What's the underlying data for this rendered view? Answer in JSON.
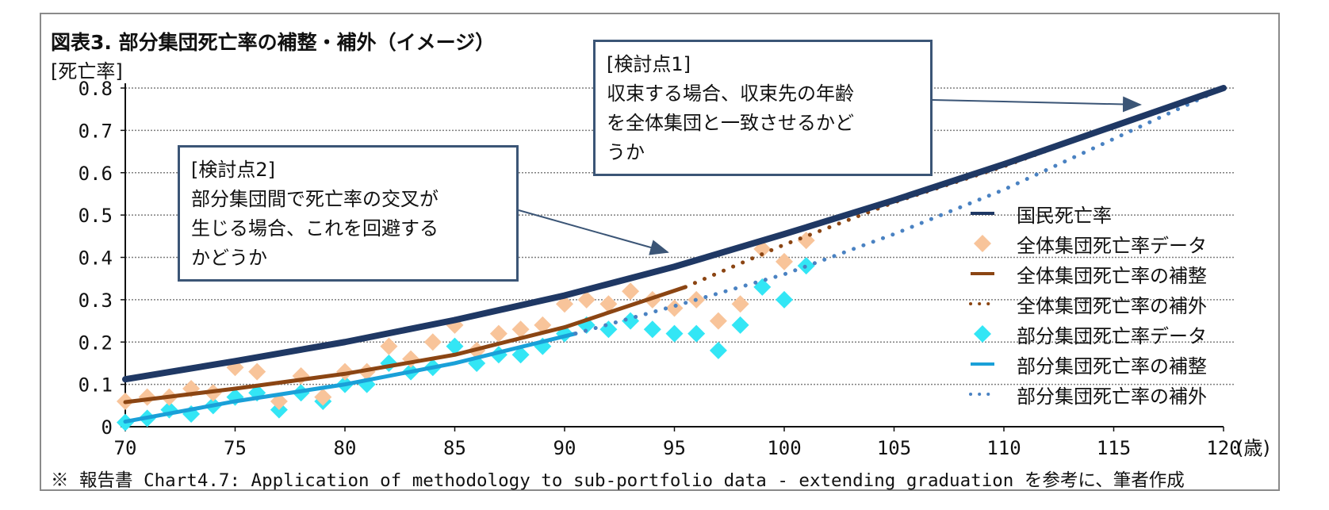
{
  "title": "図表3. 部分集団死亡率の補整・補外（イメージ）",
  "y_unit_label": "[死亡率]",
  "x_unit_label": "(歳)",
  "footnote": "※ 報告書 Chart4.7: Application of methodology to sub-portfolio data - extending graduation を参考に、筆者作成",
  "callout1": {
    "line1": "[検討点1]",
    "line2": "収束する場合、収束先の年齢",
    "line3": "を全体集団と一致させるかど",
    "line4": "うか"
  },
  "callout2": {
    "line1": "[検討点2]",
    "line2": "部分集団間で死亡率の交叉が",
    "line3": "生じる場合、これを回避する",
    "line4": "かどうか"
  },
  "colors": {
    "national": "#1f3864",
    "overall_data": "#f8c49a",
    "overall_fit": "#8b4513",
    "sub_data": "#33e6f5",
    "sub_fit": "#1aa0d8",
    "sub_extrap": "#4a82c2",
    "grid": "#7f7f7f",
    "callout_border": "#3b5576"
  },
  "chart_data": {
    "type": "line",
    "title": "図表3. 部分集団死亡率の補整・補外（イメージ）",
    "xlabel": "(歳)",
    "ylabel": "[死亡率]",
    "xlim": [
      70,
      120
    ],
    "ylim": [
      0,
      0.8
    ],
    "x_ticks": [
      "70",
      "75",
      "80",
      "85",
      "90",
      "95",
      "100",
      "105",
      "110",
      "115",
      "120"
    ],
    "y_ticks": [
      "0",
      "0.1",
      "0.2",
      "0.3",
      "0.4",
      "0.5",
      "0.6",
      "0.7",
      "0.8"
    ],
    "legend_position": "right",
    "series": [
      {
        "name": "国民死亡率",
        "style": "thick-line",
        "color": "#1f3864",
        "x": [
          70,
          75,
          80,
          85,
          90,
          95,
          100,
          105,
          110,
          115,
          120
        ],
        "y": [
          0.112,
          0.155,
          0.2,
          0.252,
          0.31,
          0.378,
          0.455,
          0.535,
          0.62,
          0.71,
          0.8
        ]
      },
      {
        "name": "全体集団死亡率データ",
        "style": "diamond",
        "color": "#f8c49a",
        "x": [
          70,
          71,
          72,
          73,
          74,
          75,
          76,
          77,
          78,
          79,
          80,
          81,
          82,
          83,
          84,
          85,
          86,
          87,
          88,
          89,
          90,
          91,
          92,
          93,
          94,
          95,
          96,
          97,
          98,
          99,
          100,
          101
        ],
        "y": [
          0.06,
          0.07,
          0.07,
          0.09,
          0.08,
          0.14,
          0.13,
          0.06,
          0.12,
          0.07,
          0.13,
          0.13,
          0.19,
          0.16,
          0.2,
          0.24,
          0.18,
          0.22,
          0.23,
          0.24,
          0.29,
          0.3,
          0.29,
          0.32,
          0.3,
          0.28,
          0.3,
          0.25,
          0.29,
          0.42,
          0.39,
          0.44
        ]
      },
      {
        "name": "全体集団死亡率の補整",
        "style": "solid-line",
        "color": "#8b4513",
        "x": [
          70,
          75,
          80,
          85,
          90,
          95.5
        ],
        "y": [
          0.058,
          0.09,
          0.125,
          0.17,
          0.235,
          0.33
        ]
      },
      {
        "name": "全体集団死亡率の補外",
        "style": "dotted-line",
        "color": "#8b4513",
        "x": [
          95.5,
          100,
          105,
          110,
          115,
          120
        ],
        "y": [
          0.33,
          0.43,
          0.53,
          0.615,
          0.71,
          0.8
        ]
      },
      {
        "name": "部分集団死亡率データ",
        "style": "diamond",
        "color": "#33e6f5",
        "x": [
          70,
          71,
          72,
          73,
          74,
          75,
          76,
          77,
          78,
          79,
          80,
          81,
          82,
          83,
          84,
          85,
          86,
          87,
          88,
          89,
          90,
          91,
          92,
          93,
          94,
          95,
          96,
          97,
          98,
          99,
          100,
          101
        ],
        "y": [
          0.01,
          0.02,
          0.04,
          0.03,
          0.05,
          0.07,
          0.08,
          0.04,
          0.08,
          0.06,
          0.1,
          0.1,
          0.15,
          0.13,
          0.14,
          0.19,
          0.15,
          0.17,
          0.17,
          0.19,
          0.22,
          0.24,
          0.23,
          0.25,
          0.23,
          0.22,
          0.22,
          0.18,
          0.24,
          0.33,
          0.3,
          0.38
        ]
      },
      {
        "name": "部分集団死亡率の補整",
        "style": "solid-line",
        "color": "#1aa0d8",
        "x": [
          70,
          75,
          80,
          85,
          90.5
        ],
        "y": [
          0.012,
          0.06,
          0.1,
          0.15,
          0.22
        ]
      },
      {
        "name": "部分集団死亡率の補外",
        "style": "dotted-line",
        "color": "#4a82c2",
        "x": [
          90.5,
          95,
          100,
          105,
          110,
          115,
          120
        ],
        "y": [
          0.22,
          0.285,
          0.36,
          0.455,
          0.56,
          0.68,
          0.8
        ]
      }
    ]
  }
}
